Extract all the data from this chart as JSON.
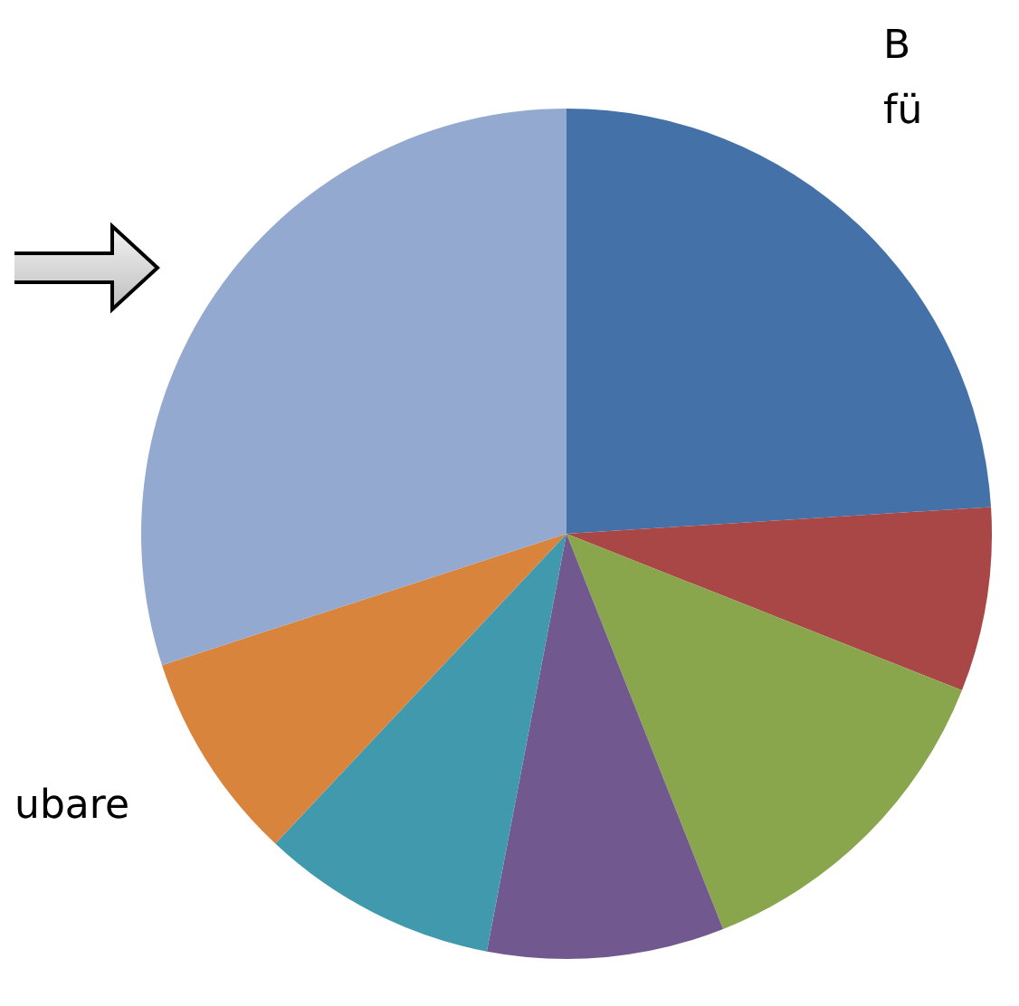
{
  "chart_data": {
    "type": "pie",
    "categories": [
      null,
      null,
      null,
      null,
      null,
      null,
      null
    ],
    "values": [
      24,
      7,
      13,
      9,
      9,
      8,
      30
    ],
    "colors": [
      "#4472a8",
      "#a84746",
      "#8aa64d",
      "#71598f",
      "#4199ae",
      "#d9843d",
      "#93a9d0"
    ],
    "annotations": [
      "B",
      "fü",
      "ubare"
    ]
  }
}
